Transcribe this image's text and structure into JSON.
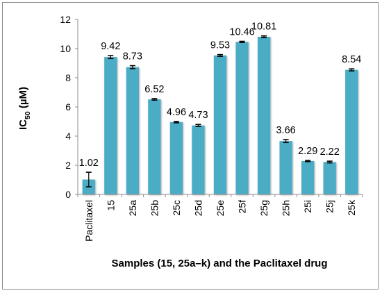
{
  "chart_data": {
    "type": "bar",
    "categories": [
      "Paclitaxel",
      "15",
      "25a",
      "25b",
      "25c",
      "25d",
      "25e",
      "25f",
      "25g",
      "25h",
      "25i",
      "25j",
      "25k"
    ],
    "values": [
      1.02,
      9.42,
      8.73,
      6.52,
      4.96,
      4.73,
      9.53,
      10.46,
      10.81,
      3.66,
      2.29,
      2.22,
      8.54
    ],
    "value_labels": [
      "1.02",
      "9.42",
      "8.73",
      "6.52",
      "4.96",
      "4.73",
      "9.53",
      "10.46",
      "10.81",
      "3.66",
      "2.29",
      "2.22",
      "8.54"
    ],
    "errors": [
      0.5,
      0.1,
      0.1,
      0.05,
      0.05,
      0.07,
      0.06,
      0.04,
      0.06,
      0.1,
      0.04,
      0.06,
      0.07
    ],
    "yticks": [
      "0",
      "2",
      "4",
      "6",
      "8",
      "10",
      "12"
    ],
    "ylim": [
      0,
      12
    ],
    "xlabel": "Samples (15, 25a–k) and the Paclitaxel drug",
    "ylabel_main": "IC",
    "ylabel_sub": "50",
    "ylabel_unit": " (µM)",
    "bar_color": "#4bacc6",
    "grid": false,
    "legend": "none"
  }
}
